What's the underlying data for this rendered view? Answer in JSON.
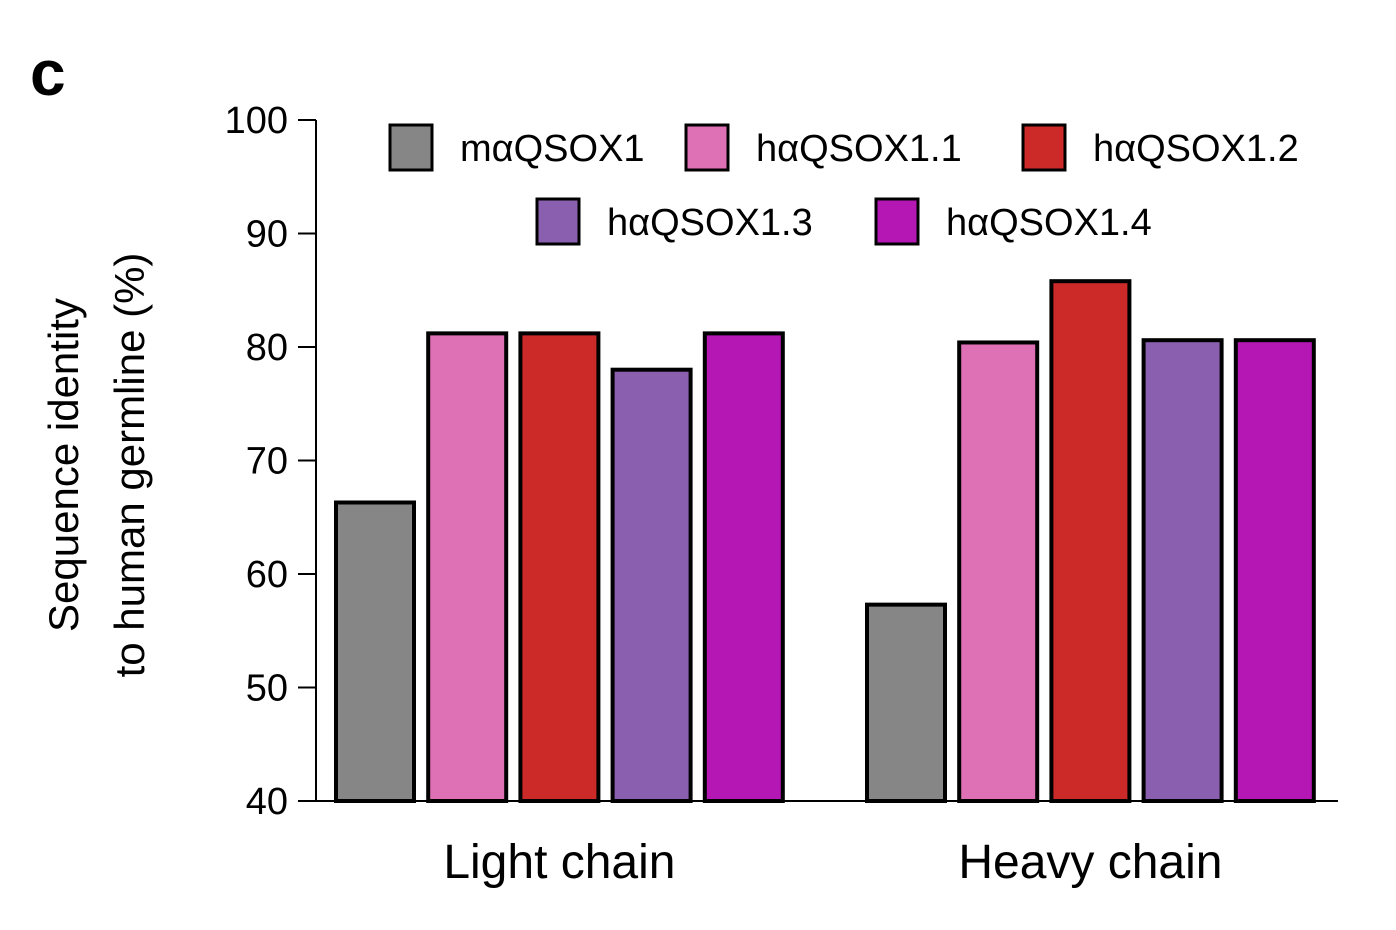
{
  "panel_label": "c",
  "chart_data": {
    "type": "bar",
    "categories": [
      "Light chain",
      "Heavy chain"
    ],
    "series": [
      {
        "name": "mαQSOX1",
        "color": "#868686",
        "values": [
          66.3,
          57.3
        ]
      },
      {
        "name": "hαQSOX1.1",
        "color": "#de70b6",
        "values": [
          81.2,
          80.4
        ]
      },
      {
        "name": "hαQSOX1.2",
        "color": "#cc2a29",
        "values": [
          81.2,
          85.8
        ]
      },
      {
        "name": "hαQSOX1.3",
        "color": "#8a5fb0",
        "values": [
          78.0,
          80.6
        ]
      },
      {
        "name": "hαQSOX1.4",
        "color": "#b517b5",
        "values": [
          81.2,
          80.6
        ]
      }
    ],
    "ylabel_lines": [
      "Sequence identity",
      "to human germline (%)"
    ],
    "ylim": [
      40,
      100
    ],
    "yticks": [
      40,
      50,
      60,
      70,
      80,
      90,
      100
    ],
    "grid": false,
    "legend_position": "top-right"
  }
}
